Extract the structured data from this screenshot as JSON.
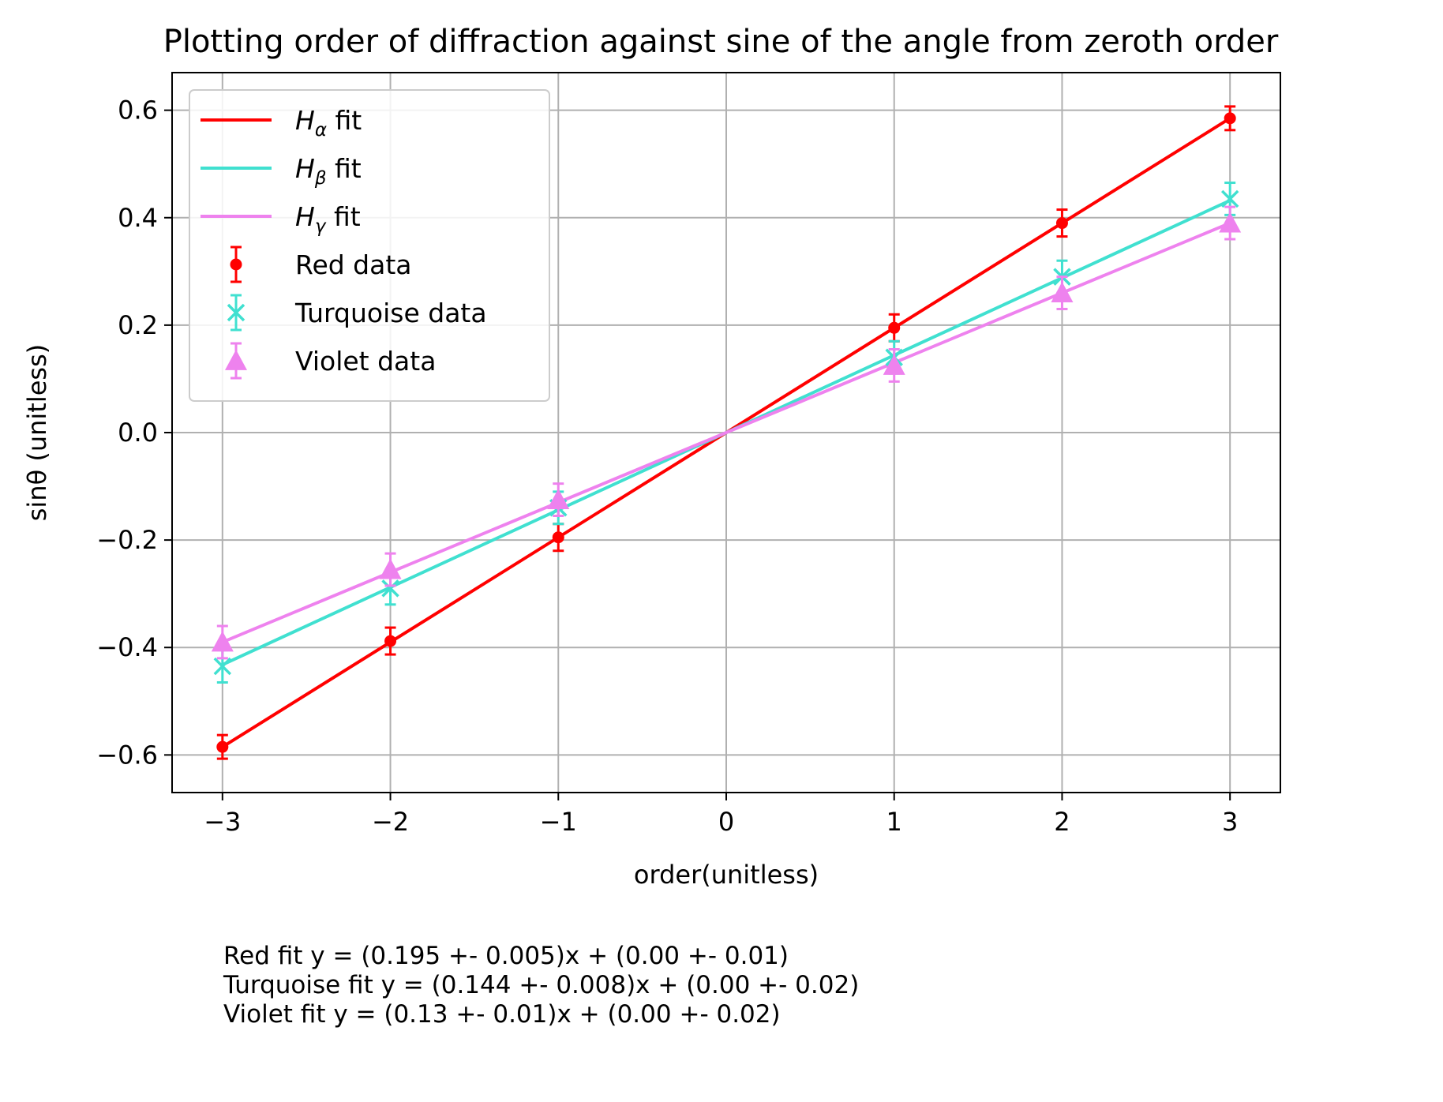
{
  "chart_data": {
    "type": "scatter",
    "title": "Plotting order of diffraction against sine of the angle from zeroth order",
    "xlabel": "order(unitless)",
    "ylabel": "sinθ (unitless)",
    "xlim": [
      -3.3,
      3.3
    ],
    "ylim": [
      -0.67,
      0.67
    ],
    "xticks": [
      -3,
      -2,
      -1,
      0,
      1,
      2,
      3
    ],
    "xtick_labels": [
      "−3",
      "−2",
      "−1",
      "0",
      "1",
      "2",
      "3"
    ],
    "yticks": [
      -0.6,
      -0.4,
      -0.2,
      0.0,
      0.2,
      0.4,
      0.6
    ],
    "ytick_labels": [
      "−0.6",
      "−0.4",
      "−0.2",
      "0.0",
      "0.2",
      "0.4",
      "0.6"
    ],
    "grid": true,
    "legend_position": "top-left",
    "fits": [
      {
        "name": "H",
        "sub": "α",
        "suffix": " fit",
        "color": "#ff0000",
        "slope": 0.195,
        "intercept": 0.0,
        "x_range": [
          -3,
          3
        ]
      },
      {
        "name": "H",
        "sub": "β",
        "suffix": " fit",
        "color": "#40e0d0",
        "slope": 0.144,
        "intercept": 0.0,
        "x_range": [
          -3,
          3
        ]
      },
      {
        "name": "H",
        "sub": "γ",
        "suffix": " fit",
        "color": "#ee82ee",
        "slope": 0.13,
        "intercept": 0.0,
        "x_range": [
          -3,
          3
        ]
      }
    ],
    "series": [
      {
        "name": "Red data",
        "color": "#ff0000",
        "marker": "dot",
        "x": [
          -3,
          -2,
          -1,
          1,
          2,
          3
        ],
        "y": [
          -0.585,
          -0.388,
          -0.195,
          0.195,
          0.39,
          0.585
        ],
        "yerr": [
          0.022,
          0.025,
          0.025,
          0.025,
          0.025,
          0.022
        ]
      },
      {
        "name": "Turquoise data",
        "color": "#40e0d0",
        "marker": "x",
        "x": [
          -3,
          -2,
          -1,
          1,
          2,
          3
        ],
        "y": [
          -0.435,
          -0.29,
          -0.14,
          0.14,
          0.29,
          0.435
        ],
        "yerr": [
          0.03,
          0.03,
          0.03,
          0.03,
          0.03,
          0.03
        ]
      },
      {
        "name": "Violet data",
        "color": "#ee82ee",
        "marker": "triangle",
        "x": [
          -3,
          -2,
          -1,
          1,
          2,
          3
        ],
        "y": [
          -0.39,
          -0.255,
          -0.125,
          0.125,
          0.26,
          0.39
        ],
        "yerr": [
          0.03,
          0.03,
          0.03,
          0.03,
          0.03,
          0.03
        ]
      }
    ]
  },
  "notes": {
    "line1": "Red fit y = (0.195 +- 0.005)x + (0.00 +- 0.01)",
    "line2": "Turquoise fit y = (0.144 +- 0.008)x + (0.00 +- 0.02)",
    "line3": "Violet fit y = (0.13 +- 0.01)x + (0.00 +- 0.02)"
  }
}
